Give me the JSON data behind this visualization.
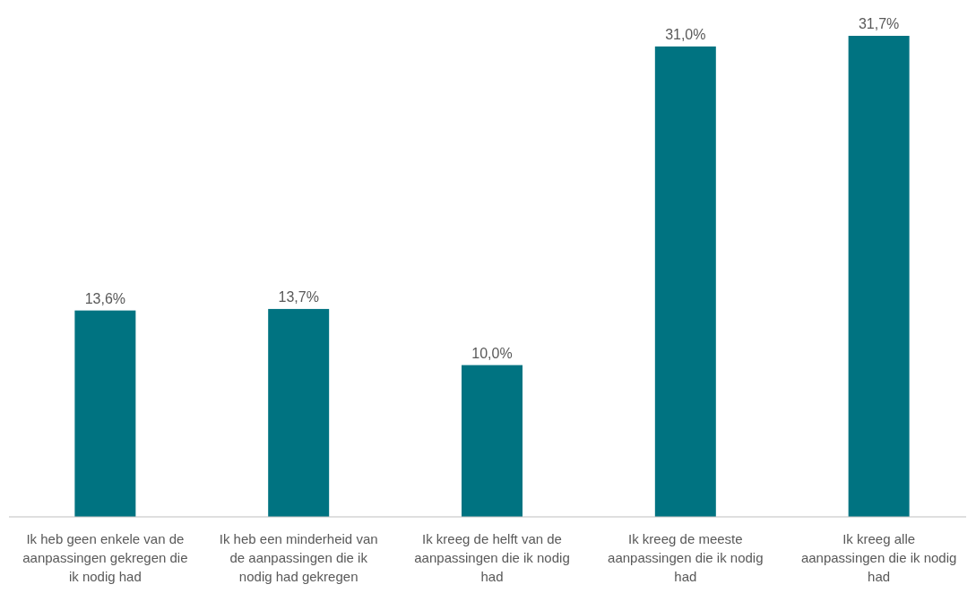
{
  "chart_data": {
    "type": "bar",
    "categories": [
      "Ik heb geen enkele van de aanpassingen gekregen die ik nodig had",
      "Ik heb een minderheid van de aanpassingen die ik nodig had gekregen",
      "Ik kreeg de helft van de aanpassingen die ik nodig had",
      "Ik kreeg de meeste aanpassingen die ik nodig had",
      "Ik kreeg alle aanpassingen die ik nodig had"
    ],
    "values": [
      13.6,
      13.7,
      10.0,
      31.0,
      31.7
    ],
    "value_labels": [
      "13,6%",
      "13,7%",
      "10,0%",
      "31,0%",
      "31,7%"
    ],
    "color": "#007381"
  }
}
